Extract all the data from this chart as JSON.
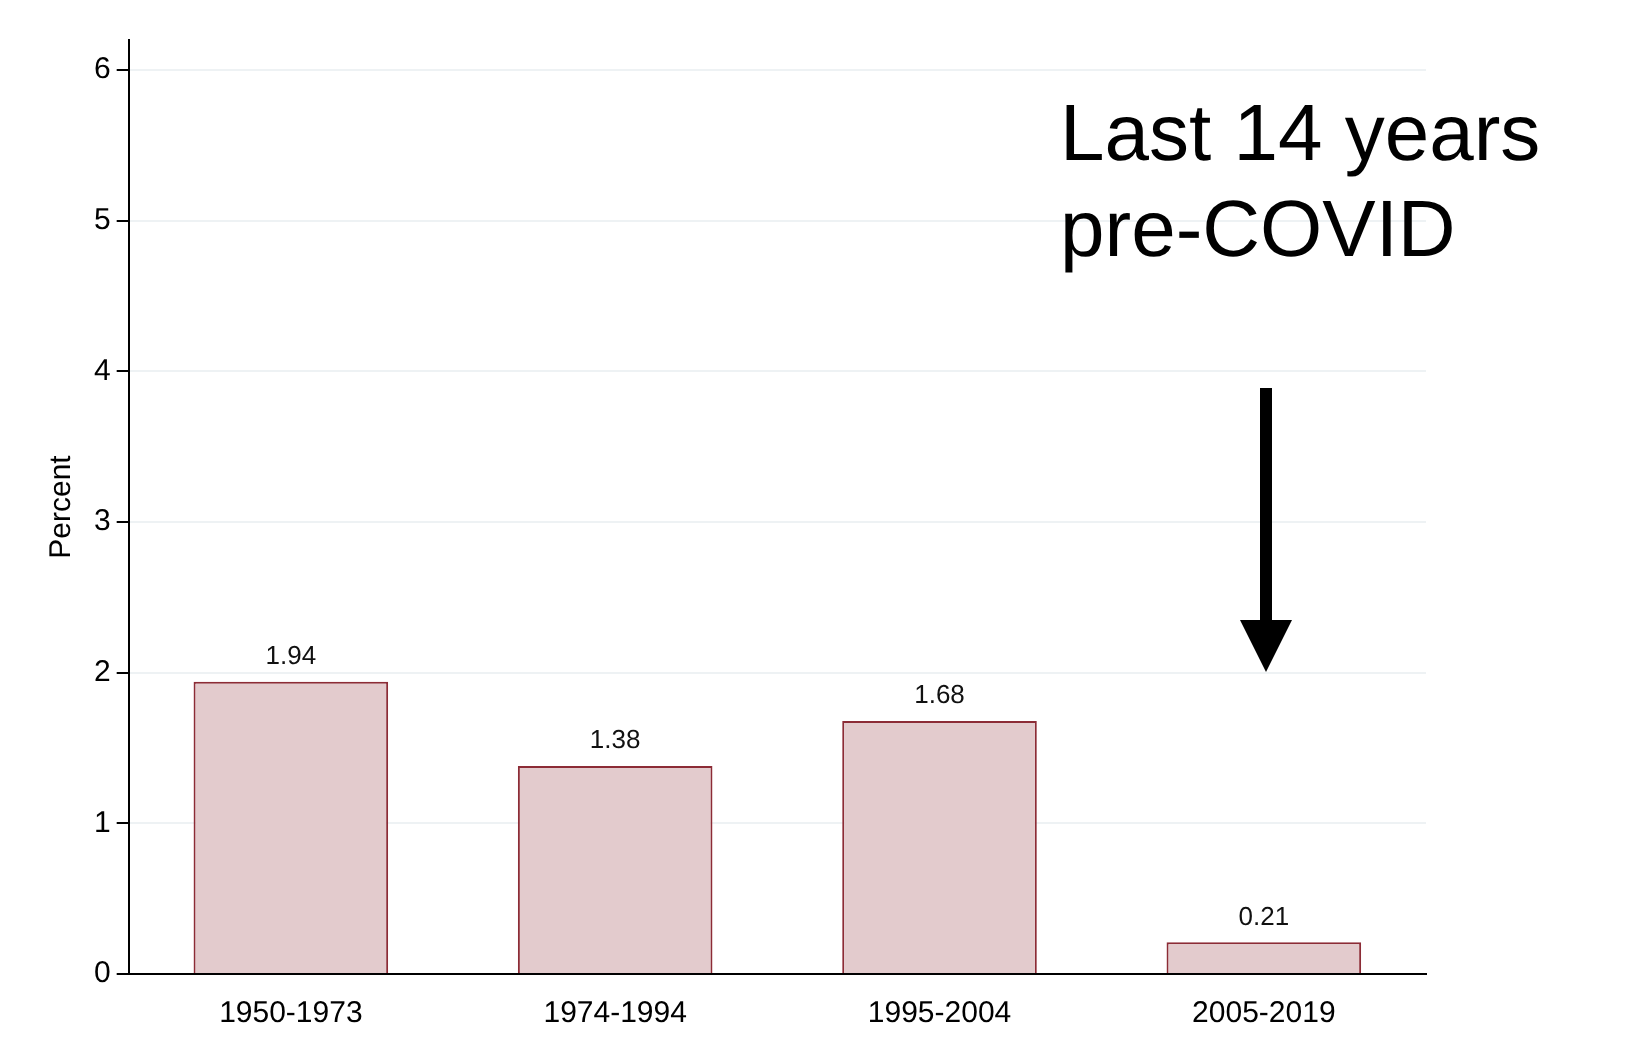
{
  "chart_data": {
    "type": "bar",
    "ylabel": "Percent",
    "categories": [
      "1950-1973",
      "1974-1994",
      "1995-2004",
      "2005-2019"
    ],
    "values": [
      1.94,
      1.38,
      1.68,
      0.21
    ],
    "color": "#e3cbcd",
    "ylim": [
      0,
      6.2
    ],
    "yticks": [
      0,
      1,
      2,
      3,
      4,
      5,
      6
    ],
    "grid": "y",
    "data_labels": true,
    "legend": false,
    "annotations": [
      "Last 14 years pre-COVID"
    ]
  }
}
